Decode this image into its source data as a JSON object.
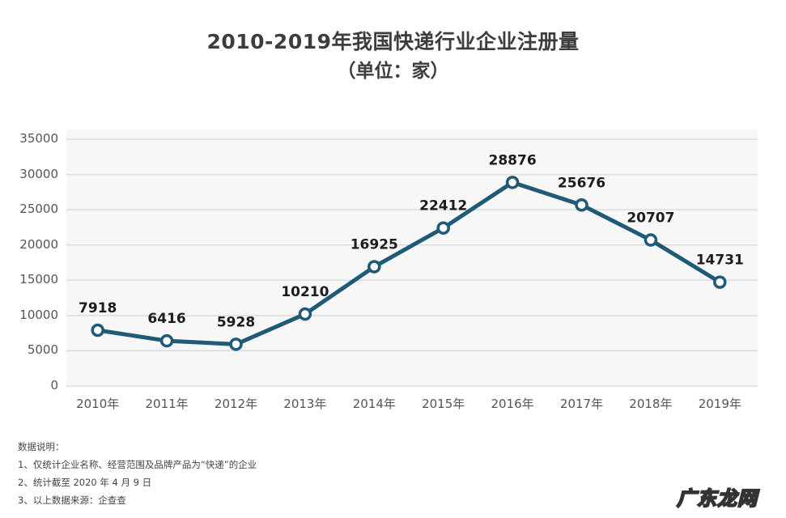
{
  "header": {
    "title": "2010-2019年我国快递行业企业注册量",
    "subtitle": "（单位：家）"
  },
  "chart_data": {
    "type": "line",
    "title": "2010-2019年我国快递行业企业注册量",
    "subtitle": "（单位：家）",
    "xlabel": "",
    "ylabel": "",
    "categories": [
      "2010年",
      "2011年",
      "2012年",
      "2013年",
      "2014年",
      "2015年",
      "2016年",
      "2017年",
      "2018年",
      "2019年"
    ],
    "values": [
      7918,
      6416,
      5928,
      10210,
      16925,
      22412,
      28876,
      25676,
      20707,
      14731
    ],
    "ylim": [
      0,
      35000
    ],
    "yticks": [
      "0",
      "5000",
      "10000",
      "15000",
      "20000",
      "25000",
      "30000",
      "35000"
    ],
    "grid": true,
    "legend": null,
    "data_labels": true,
    "line_color": "#1f5a78",
    "marker": "hollow-circle"
  },
  "notes": {
    "heading": "数据说明：",
    "items": [
      "1、仅统计企业名称、经营范围及品牌产品为“快递”的企业",
      "2、统计截至 2020 年 4 月 9 日",
      "3、以上数据来源：企查查"
    ]
  },
  "watermark": "广东龙网"
}
